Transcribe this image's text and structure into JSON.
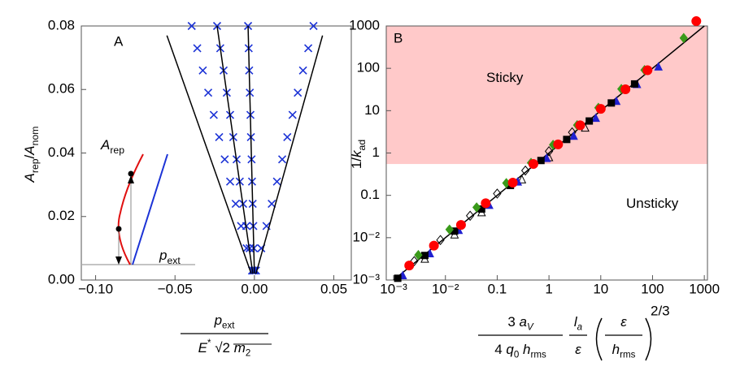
{
  "chart_data": [
    {
      "type": "scatter",
      "panel_label": "A",
      "ylabel": [
        {
          "text": "A",
          "italic": true
        },
        {
          "text": "rep",
          "sub": true
        },
        {
          "text": "/"
        },
        {
          "text": "A",
          "italic": true
        },
        {
          "text": "nom",
          "sub": true
        }
      ],
      "xlabel": [
        {
          "num": [
            {
              "text": "p",
              "italic": true
            },
            {
              "text": "ext",
              "sub": true
            }
          ],
          "den": [
            {
              "text": "E",
              "italic": true
            },
            {
              "text": "*",
              "sup": true
            },
            {
              "text": " √2 "
            },
            {
              "text": "m",
              "italic": true
            },
            {
              "text": "2",
              "sub": true
            }
          ]
        }
      ],
      "annotations": [
        {
          "parts": [
            {
              "text": "A",
              "italic": true
            },
            {
              "text": "rep",
              "sub": true
            }
          ]
        },
        {
          "parts": [
            {
              "text": "p",
              "italic": true
            },
            {
              "text": "ext",
              "sub": true
            }
          ]
        }
      ],
      "xlim": [
        -0.109,
        0.061
      ],
      "ylim": [
        0,
        0.08
      ],
      "xticks": [
        {
          "value": -0.1,
          "label": "−0.10"
        },
        {
          "value": -0.05,
          "label": "−0.05"
        },
        {
          "value": 0,
          "label": "0.00"
        },
        {
          "value": 0.05,
          "label": "0.05"
        }
      ],
      "yticks": [
        {
          "value": 0,
          "label": "0.00"
        },
        0.02,
        0.04,
        0.06,
        0.08
      ],
      "series": [
        {
          "color": "#1c33d6",
          "marker": "x",
          "x": [
            -0.0015,
            -0.0049,
            -0.0084,
            -0.0118,
            -0.0153,
            -0.0187,
            -0.0222,
            -0.0256,
            -0.0291,
            -0.0325,
            -0.036,
            -0.0395
          ],
          "values": [
            0.003,
            0.01,
            0.017,
            0.024,
            0.031,
            0.038,
            0.045,
            0.052,
            0.059,
            0.066,
            0.073,
            0.08
          ]
        },
        {
          "color": "#1c33d6",
          "marker": "x",
          "x": [
            -0.001,
            -0.003,
            -0.0051,
            -0.0071,
            -0.0092,
            -0.0112,
            -0.0133,
            -0.0153,
            -0.0174,
            -0.0194,
            -0.0215,
            -0.0235
          ],
          "values": [
            0.003,
            0.01,
            0.017,
            0.024,
            0.031,
            0.038,
            0.045,
            0.052,
            0.059,
            0.066,
            0.073,
            0.08
          ]
        },
        {
          "color": "#1c33d6",
          "marker": "x",
          "x": [
            0,
            -0.0004,
            -0.0007,
            -0.0011,
            -0.0015,
            -0.0018,
            -0.0022,
            -0.0025,
            -0.0029,
            -0.0033,
            -0.0036,
            -0.004
          ],
          "values": [
            0.003,
            0.01,
            0.017,
            0.024,
            0.031,
            0.038,
            0.045,
            0.052,
            0.059,
            0.066,
            0.073,
            0.08
          ]
        },
        {
          "color": "#1c33d6",
          "marker": "x",
          "x": [
            0.001,
            0.0043,
            0.0076,
            0.0109,
            0.0142,
            0.0175,
            0.0207,
            0.024,
            0.0273,
            0.0306,
            0.0339,
            0.0372
          ],
          "values": [
            0.003,
            0.01,
            0.017,
            0.024,
            0.031,
            0.038,
            0.045,
            0.052,
            0.059,
            0.066,
            0.073,
            0.08
          ]
        },
        {
          "color": "#000000",
          "marker": "line",
          "x": [
            -0.002,
            -0.0551
          ],
          "values": [
            0.002,
            0.077
          ]
        },
        {
          "color": "#000000",
          "marker": "line",
          "x": [
            -0.001,
            -0.0235
          ],
          "values": [
            0.002,
            0.08
          ]
        },
        {
          "color": "#000000",
          "marker": "line",
          "x": [
            0,
            -0.004
          ],
          "values": [
            0.002,
            0.08
          ]
        },
        {
          "color": "#000000",
          "marker": "line",
          "x": [
            0.001,
            0.0429
          ],
          "values": [
            0.002,
            0.077
          ]
        }
      ]
    },
    {
      "type": "scatter",
      "panel_label": "B",
      "xscale": "log",
      "yscale": "log",
      "ylabel": [
        {
          "text": "1/"
        },
        {
          "text": "k",
          "italic": true
        },
        {
          "text": "ad",
          "sub": true
        }
      ],
      "xlabel": [
        {
          "num": [
            {
              "text": "3 "
            },
            {
              "text": "a",
              "italic": true
            },
            {
              "text": "V",
              "sub": true,
              "italic": true
            }
          ],
          "den": [
            {
              "text": "4 "
            },
            {
              "text": "q",
              "italic": true
            },
            {
              "text": "0",
              "sub": true
            },
            {
              "text": " h",
              "italic": true
            },
            {
              "text": "rms",
              "sub": true
            }
          ]
        },
        {
          "num": [
            {
              "text": "l",
              "italic": true
            },
            {
              "text": "a",
              "sub": true,
              "italic": true
            }
          ],
          "den": [
            {
              "text": "ε",
              "italic": true
            }
          ]
        },
        {
          "num": [
            {
              "text": "ε",
              "italic": true
            }
          ],
          "den": [
            {
              "text": "h",
              "italic": true
            },
            {
              "text": "rms",
              "sub": true
            }
          ],
          "paren": true,
          "power": "2/3"
        }
      ],
      "annotations": [
        {
          "parts": [
            {
              "text": "Sticky"
            }
          ]
        },
        {
          "parts": [
            {
              "text": "Unsticky"
            }
          ]
        }
      ],
      "region": {
        "ymin": 0.55,
        "color": "#ffc9c9"
      },
      "xlim": [
        0.00072,
        1150
      ],
      "ylim": [
        0.001,
        1000
      ],
      "xticks": [
        {
          "value": 0.001,
          "label": "10⁻³"
        },
        {
          "value": 0.01,
          "label": "10⁻²"
        },
        0.1,
        1,
        10,
        100,
        1000
      ],
      "yticks": [
        {
          "value": 0.001,
          "label": "10⁻³"
        },
        {
          "value": 0.01,
          "label": "10⁻²"
        },
        0.1,
        1,
        10,
        100,
        1000
      ],
      "series": [
        {
          "color": "#000000",
          "marker": "line",
          "x": [
            0.001,
            1000
          ],
          "values": [
            0.001,
            1000
          ]
        },
        {
          "color": "#000000",
          "marker": "diamond",
          "filled": false,
          "x": [
            0.0025,
            0.008,
            0.03,
            0.1,
            0.35,
            1,
            2.8
          ],
          "values": [
            0.0028,
            0.0088,
            0.033,
            0.11,
            0.385,
            1.1,
            3.08
          ]
        },
        {
          "color": "#000000",
          "marker": "triangle",
          "filled": false,
          "x": [
            0.004,
            0.015,
            0.05,
            0.3,
            1,
            5
          ],
          "values": [
            0.0032,
            0.012,
            0.04,
            0.24,
            0.8,
            4
          ]
        },
        {
          "color": "#2020d0",
          "marker": "triangle",
          "filled": true,
          "x": [
            0.0015,
            0.005,
            0.018,
            0.07,
            0.25,
            0.9,
            3,
            8,
            20,
            50,
            130
          ],
          "values": [
            0.0013,
            0.0043,
            0.0153,
            0.0595,
            0.2125,
            0.765,
            2.55,
            6.8,
            17,
            42.5,
            110.5
          ]
        },
        {
          "color": "#000000",
          "marker": "square",
          "filled": true,
          "x": [
            0.0012,
            0.004,
            0.015,
            0.05,
            0.18,
            0.7,
            2.2,
            6,
            16,
            45
          ],
          "values": [
            0.0011,
            0.0038,
            0.0143,
            0.0475,
            0.171,
            0.665,
            2.09,
            5.7,
            15.2,
            42.75
          ]
        },
        {
          "color": "#3a9a1a",
          "marker": "diamond",
          "filled": true,
          "x": [
            0.003,
            0.012,
            0.04,
            0.15,
            0.45,
            1.2,
            3.5,
            9,
            25,
            70,
            400
          ],
          "values": [
            0.0039,
            0.0156,
            0.052,
            0.195,
            0.585,
            1.56,
            4.55,
            11.7,
            32.5,
            91,
            520
          ]
        },
        {
          "color": "#ff0000",
          "marker": "circle",
          "filled": true,
          "x": [
            0.002,
            0.006,
            0.02,
            0.06,
            0.2,
            0.5,
            1.5,
            4,
            10,
            30,
            80,
            700
          ],
          "values": [
            0.0022,
            0.0065,
            0.02,
            0.065,
            0.2,
            0.55,
            1.6,
            4.5,
            11,
            32,
            90,
            1300
          ]
        }
      ]
    }
  ]
}
